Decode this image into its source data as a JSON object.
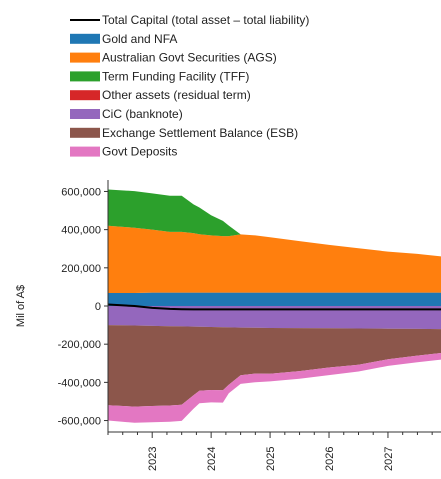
{
  "chart_data": {
    "type": "area",
    "title": "",
    "xlabel": "",
    "ylabel": "Mil of A$",
    "xlim": [
      2022.25,
      2027.9
    ],
    "ylim": [
      -660000,
      660000
    ],
    "x_ticks": [
      2023,
      2024,
      2025,
      2026,
      2027,
      2028
    ],
    "x_tick_labels": [
      "2023",
      "2024",
      "2025",
      "2026",
      "2027",
      ""
    ],
    "y_ticks": [
      600000,
      400000,
      200000,
      0,
      -200000,
      -400000,
      -600000
    ],
    "y_tick_labels": [
      "600,000",
      "400,000",
      "200,000",
      "0",
      "-200,000",
      "-400,000",
      "-600,000"
    ],
    "grid": false,
    "legend_position": "top",
    "x": [
      2022.25,
      2022.7,
      2023.0,
      2023.3,
      2023.5,
      2023.7,
      2023.8,
      2024.0,
      2024.2,
      2024.3,
      2024.5,
      2024.75,
      2025.0,
      2025.5,
      2026.0,
      2026.5,
      2027.0,
      2027.5,
      2027.9
    ],
    "series": [
      {
        "name": "Gold and NFA",
        "color": "#1f77b4",
        "values": [
          68000,
          68000,
          70000,
          70000,
          70000,
          70000,
          70000,
          70000,
          70000,
          70000,
          70000,
          70000,
          70000,
          70000,
          70000,
          70000,
          70000,
          70000,
          70000
        ]
      },
      {
        "name": "Australian Govt Securities (AGS)",
        "color": "#ff7f0e",
        "values": [
          352000,
          342000,
          330000,
          318000,
          318000,
          312000,
          306000,
          300000,
          296000,
          296000,
          305000,
          300000,
          290000,
          270000,
          250000,
          232000,
          215000,
          203000,
          190000
        ]
      },
      {
        "name": "Term Funding Facility (TFF)",
        "color": "#2ca02c",
        "values": [
          190000,
          192000,
          190000,
          190000,
          190000,
          150000,
          140000,
          105000,
          80000,
          55000,
          0,
          0,
          0,
          0,
          0,
          0,
          0,
          0,
          0
        ]
      },
      {
        "name": "Other assets (residual term)",
        "color": "#d62728",
        "values": [
          0,
          0,
          0,
          0,
          0,
          0,
          0,
          0,
          0,
          0,
          0,
          0,
          0,
          0,
          0,
          0,
          0,
          0,
          0
        ]
      },
      {
        "name": "CiC (banknote)",
        "color": "#9467bd",
        "values": [
          -100000,
          -102000,
          -104000,
          -106000,
          -107000,
          -108000,
          -109000,
          -110000,
          -111000,
          -112000,
          -113000,
          -114000,
          -115000,
          -116000,
          -117000,
          -118000,
          -119000,
          -120000,
          -121000
        ]
      },
      {
        "name": "Exchange Settlement Balance (ESB)",
        "color": "#8c564b",
        "values": [
          -420000,
          -425000,
          -420000,
          -415000,
          -410000,
          -360000,
          -335000,
          -330000,
          -330000,
          -300000,
          -250000,
          -240000,
          -240000,
          -225000,
          -205000,
          -190000,
          -160000,
          -140000,
          -125000
        ]
      },
      {
        "name": "Govt Deposits",
        "color": "#e377c2",
        "values": [
          -80000,
          -85000,
          -85000,
          -85000,
          -85000,
          -70000,
          -65000,
          -65000,
          -65000,
          -45000,
          -45000,
          -45000,
          -40000,
          -40000,
          -40000,
          -35000,
          -35000,
          -35000,
          -35000
        ]
      }
    ],
    "line_series": [
      {
        "name": "Total Capital (total asset – total liability)",
        "color": "#000000",
        "values": [
          8000,
          0,
          -10000,
          -15000,
          -17000,
          -18000,
          -18000,
          -18000,
          -18000,
          -18000,
          -18000,
          -18000,
          -18000,
          -18000,
          -18000,
          -18000,
          -18000,
          -18000,
          -18000
        ]
      }
    ]
  },
  "legend": [
    {
      "label": "Total Capital (total asset – total liability)",
      "color": "#000000",
      "kind": "line"
    },
    {
      "label": "Gold and NFA",
      "color": "#1f77b4",
      "kind": "patch"
    },
    {
      "label": "Australian Govt Securities (AGS)",
      "color": "#ff7f0e",
      "kind": "patch"
    },
    {
      "label": "Term Funding Facility (TFF)",
      "color": "#2ca02c",
      "kind": "patch"
    },
    {
      "label": "Other assets (residual term)",
      "color": "#d62728",
      "kind": "patch"
    },
    {
      "label": "CiC (banknote)",
      "color": "#9467bd",
      "kind": "patch"
    },
    {
      "label": "Exchange Settlement Balance (ESB)",
      "color": "#8c564b",
      "kind": "patch"
    },
    {
      "label": "Govt Deposits",
      "color": "#e377c2",
      "kind": "patch"
    }
  ]
}
